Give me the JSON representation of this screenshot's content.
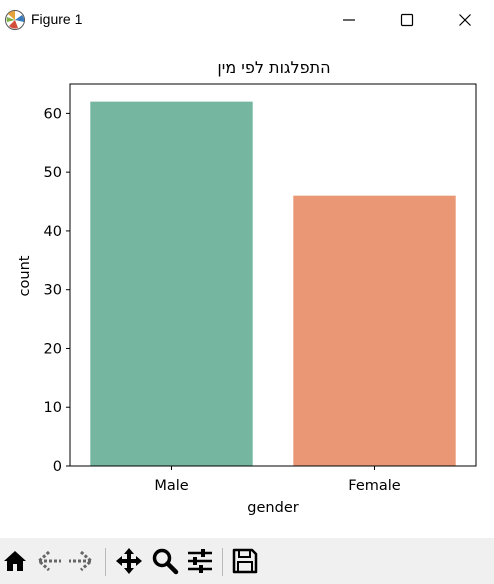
{
  "window": {
    "title": "Figure 1",
    "icon": "matplotlib-icon",
    "controls": [
      "minimize-icon",
      "maximize-icon",
      "close-icon"
    ]
  },
  "chart_data": {
    "type": "bar",
    "title": "התפלגות לפי מין",
    "xlabel": "gender",
    "ylabel": "count",
    "categories": [
      "Male",
      "Female"
    ],
    "values": [
      62,
      46
    ],
    "colors": [
      "#75b6a0",
      "#ea9775"
    ],
    "ylim": [
      0,
      65
    ],
    "yticks": [
      0,
      10,
      20,
      30,
      40,
      50,
      60
    ],
    "grid": false,
    "legend": "none"
  },
  "toolbar": {
    "tools": [
      "home-icon",
      "back-icon",
      "forward-icon",
      "pan-icon",
      "zoom-icon",
      "configure-subplots-icon",
      "save-icon"
    ]
  }
}
